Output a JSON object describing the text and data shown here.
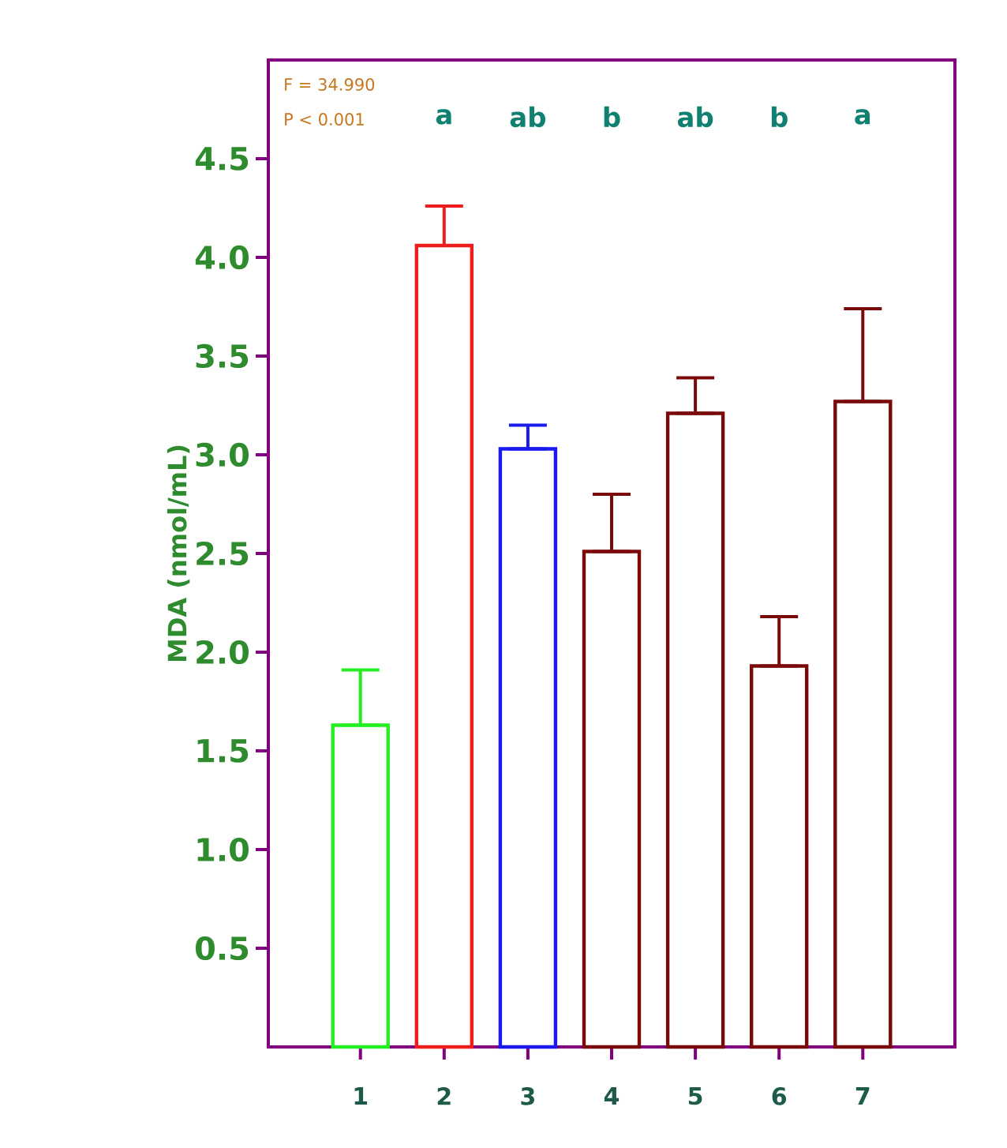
{
  "chart_data": {
    "type": "bar",
    "ylabel": "MDA (nmol/mL)",
    "categories": [
      "1",
      "2",
      "3",
      "4",
      "5",
      "6",
      "7"
    ],
    "values": [
      1.63,
      4.06,
      3.03,
      2.51,
      3.21,
      1.93,
      3.27
    ],
    "colors": [
      "#22ee22",
      "#ee1c1c",
      "#1a1aee",
      "#7a0a0a",
      "#7a0a0a",
      "#7a0a0a",
      "#7a0a0a"
    ],
    "errors": [
      [
        1.63,
        1.91
      ],
      [
        4.06,
        4.26
      ],
      [
        3.03,
        3.15
      ],
      [
        2.51,
        2.8
      ],
      [
        3.21,
        3.39
      ],
      [
        1.93,
        2.18
      ],
      [
        3.27,
        3.74
      ]
    ],
    "ylim": [
      0,
      5
    ],
    "yticks": [
      0.5,
      {
        "value": 1,
        "label": "1.0"
      },
      1.5,
      {
        "value": 2,
        "label": "2.0"
      },
      2.5,
      {
        "value": 3,
        "label": "3.0"
      },
      3.5,
      {
        "value": 4,
        "label": "4.0"
      },
      4.5
    ],
    "grid": false,
    "annotations": [
      "F = 34.990",
      "P < 0.001",
      "a",
      "ab",
      "b",
      "ab",
      "b",
      "a"
    ]
  }
}
